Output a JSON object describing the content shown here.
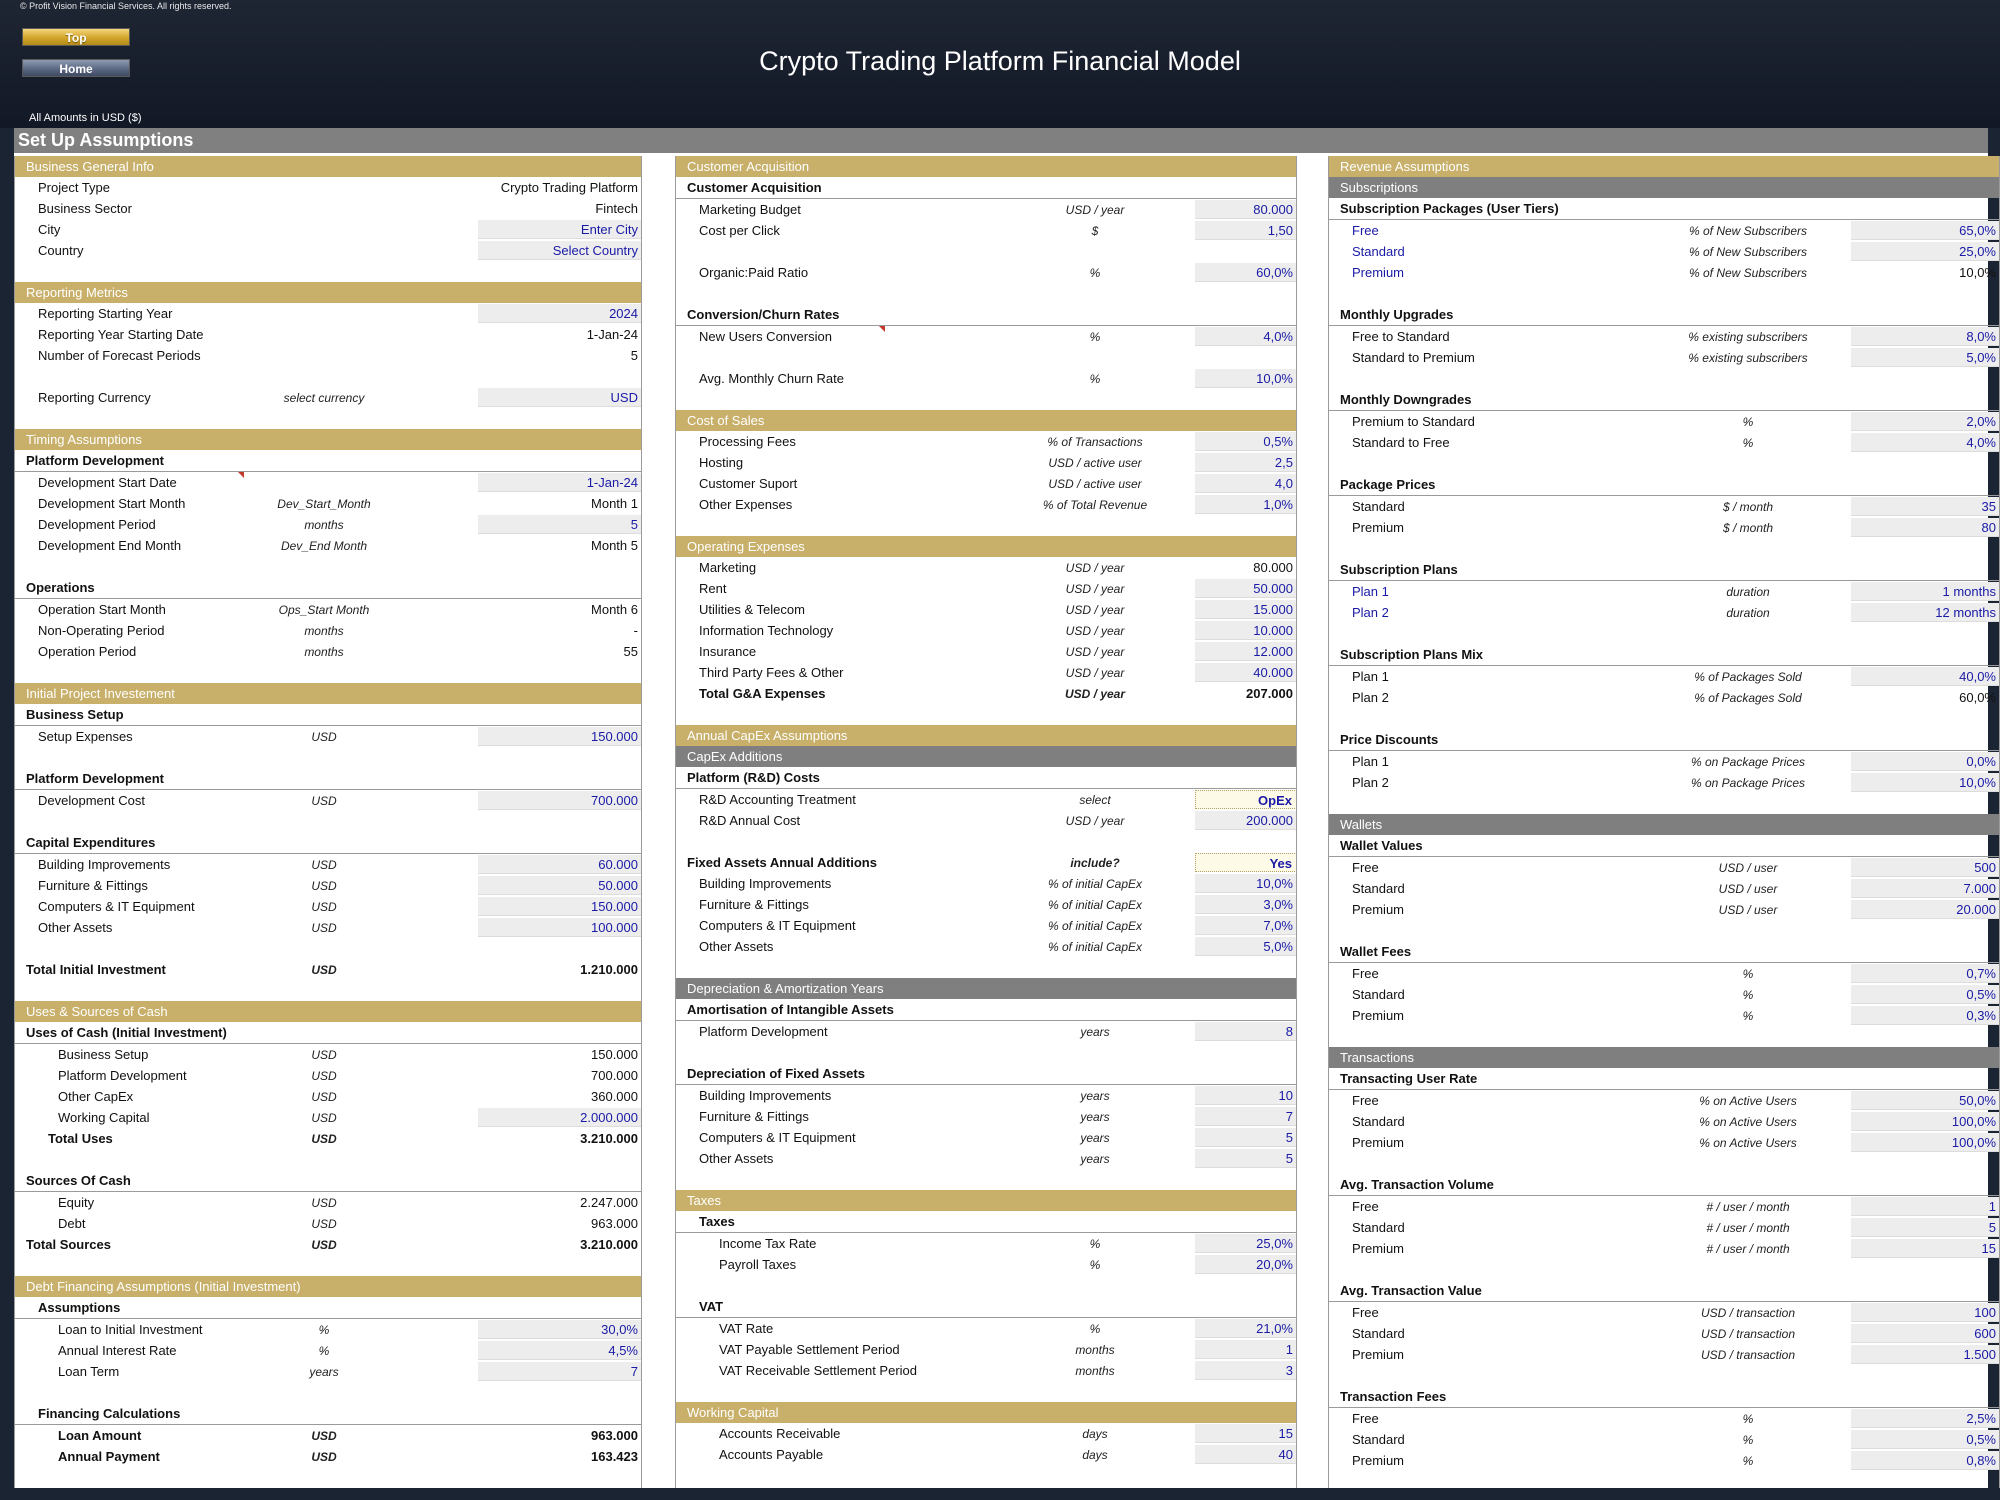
{
  "header": {
    "copyright": "© Profit Vision Financial Services. All rights reserved.",
    "top_button": "Top",
    "home_button": "Home",
    "title": "Crypto Trading Platform Financial Model",
    "amounts_note": "All Amounts in  USD ($)"
  },
  "sheet_title": "Set Up Assumptions",
  "col1": {
    "business_info": {
      "title": "Business General Info",
      "rows": [
        {
          "label": "Project Type",
          "value": "Crypto Trading Platform"
        },
        {
          "label": "Business Sector",
          "value": "Fintech"
        },
        {
          "label": "City",
          "value": "Enter City"
        },
        {
          "label": "Country",
          "value": "Select Country"
        }
      ]
    },
    "reporting": {
      "title": "Reporting Metrics",
      "rows": [
        {
          "label": "Reporting Starting Year",
          "value": "2024"
        },
        {
          "label": "Reporting Year Starting Date",
          "value": "1-Jan-24"
        },
        {
          "label": "Number of Forecast Periods",
          "value": "5"
        },
        {
          "label": "Reporting Currency",
          "unit": "select currency",
          "value": "USD"
        }
      ]
    },
    "timing": {
      "title": "Timing Assumptions",
      "platform_dev": "Platform Development",
      "dev_rows": [
        {
          "label": "Development Start Date",
          "unit": "",
          "value": "1-Jan-24"
        },
        {
          "label": "Development Start Month",
          "unit": "Dev_Start_Month",
          "value": "Month 1"
        },
        {
          "label": "Development Period",
          "unit": "months",
          "value": "5"
        },
        {
          "label": "Development End Month",
          "unit": "Dev_End Month",
          "value": "Month 5"
        }
      ],
      "operations": "Operations",
      "ops_rows": [
        {
          "label": "Operation Start Month",
          "unit": "Ops_Start Month",
          "value": "Month 6"
        },
        {
          "label": "Non-Operating Period",
          "unit": "months",
          "value": "-"
        },
        {
          "label": "Operation Period",
          "unit": "months",
          "value": "55"
        }
      ]
    },
    "initial_investment": {
      "title": "Initial Project Investement",
      "business_setup": "Business Setup",
      "setup_rows": [
        {
          "label": "Setup Expenses",
          "unit": "USD",
          "value": "150.000"
        }
      ],
      "platform_dev": "Platform Development",
      "dev_rows": [
        {
          "label": "Development Cost",
          "unit": "USD",
          "value": "700.000"
        }
      ],
      "capex": "Capital Expenditures",
      "capex_rows": [
        {
          "label": "Building Improvements",
          "unit": "USD",
          "value": "60.000"
        },
        {
          "label": "Furniture & Fittings",
          "unit": "USD",
          "value": "50.000"
        },
        {
          "label": "Computers & IT Equipment",
          "unit": "USD",
          "value": "150.000"
        },
        {
          "label": "Other Assets",
          "unit": "USD",
          "value": "100.000"
        }
      ],
      "total": {
        "label": "Total Initial Investment",
        "unit": "USD",
        "value": "1.210.000"
      }
    },
    "uses_sources": {
      "title": "Uses & Sources of Cash",
      "uses": "Uses of Cash (Initial Investment)",
      "uses_rows": [
        {
          "label": "Business Setup",
          "unit": "USD",
          "value": "150.000"
        },
        {
          "label": "Platform Development",
          "unit": "USD",
          "value": "700.000"
        },
        {
          "label": "Other CapEx",
          "unit": "USD",
          "value": "360.000"
        },
        {
          "label": "Working Capital",
          "unit": "USD",
          "value": "2.000.000"
        }
      ],
      "total_uses": {
        "label": "Total Uses",
        "unit": "USD",
        "value": "3.210.000"
      },
      "sources": "Sources Of Cash",
      "sources_rows": [
        {
          "label": "Equity",
          "unit": "USD",
          "value": "2.247.000"
        },
        {
          "label": "Debt",
          "unit": "USD",
          "value": "963.000"
        }
      ],
      "total_sources": {
        "label": "Total Sources",
        "unit": "USD",
        "value": "3.210.000"
      }
    },
    "debt": {
      "title": "Debt Financing Assumptions (Initial Investment)",
      "assumptions": "Assumptions",
      "rows": [
        {
          "label": "Loan to Initial Investment",
          "unit": "%",
          "value": "30,0%"
        },
        {
          "label": "Annual Interest Rate",
          "unit": "%",
          "value": "4,5%"
        },
        {
          "label": "Loan Term",
          "unit": "years",
          "value": "7"
        }
      ],
      "calcs": "Financing Calculations",
      "calc_rows": [
        {
          "label": "Loan Amount",
          "unit": "USD",
          "value": "963.000"
        },
        {
          "label": "Annual Payment",
          "unit": "USD",
          "value": "163.423"
        }
      ]
    }
  },
  "col2": {
    "acquisition": {
      "title": "Customer Acquisition",
      "sub": "Customer Acquisition",
      "rows": [
        {
          "label": "Marketing Budget",
          "unit": "USD / year",
          "value": "80.000"
        },
        {
          "label": "Cost per Click",
          "unit": "$",
          "value": "1,50"
        },
        {
          "label": "Organic:Paid Ratio",
          "unit": "%",
          "value": "60,0%"
        }
      ],
      "conv": "Conversion/Churn Rates",
      "conv_rows": [
        {
          "label": "New Users Conversion",
          "unit": "%",
          "value": "4,0%"
        },
        {
          "label": "Avg. Monthly Churn Rate",
          "unit": "%",
          "value": "10,0%"
        }
      ]
    },
    "cost_of_sales": {
      "title": "Cost of Sales",
      "rows": [
        {
          "label": "Processing Fees",
          "unit": "% of Transactions",
          "value": "0,5%"
        },
        {
          "label": "Hosting",
          "unit": "USD / active user",
          "value": "2,5"
        },
        {
          "label": "Customer Suport",
          "unit": "USD / active user",
          "value": "4,0"
        },
        {
          "label": "Other Expenses",
          "unit": "% of Total Revenue",
          "value": "1,0%"
        }
      ]
    },
    "opex": {
      "title": "Operating Expenses",
      "rows": [
        {
          "label": "Marketing",
          "unit": "USD / year",
          "value": "80.000"
        },
        {
          "label": "Rent",
          "unit": "USD / year",
          "value": "50.000"
        },
        {
          "label": "Utilities & Telecom",
          "unit": "USD / year",
          "value": "15.000"
        },
        {
          "label": "Information Technology",
          "unit": "USD / year",
          "value": "10.000"
        },
        {
          "label": "Insurance",
          "unit": "USD / year",
          "value": "12.000"
        },
        {
          "label": "Third Party Fees & Other",
          "unit": "USD / year",
          "value": "40.000"
        }
      ],
      "total": {
        "label": "Total G&A Expenses",
        "unit": "USD / year",
        "value": "207.000"
      }
    },
    "capex": {
      "title": "Annual CapEx Assumptions",
      "additions": "CapEx Additions",
      "rnd": "Platform (R&D) Costs",
      "rnd_rows": [
        {
          "label": "R&D Accounting Treatment",
          "unit": "select",
          "value": "OpEx"
        },
        {
          "label": "R&D Annual Cost",
          "unit": "USD / year",
          "value": "200.000"
        }
      ],
      "fixed": {
        "label": "Fixed Assets Annual Additions",
        "unit": "include?",
        "value": "Yes"
      },
      "fixed_rows": [
        {
          "label": "Building Improvements",
          "unit": "% of initial CapEx",
          "value": "10,0%"
        },
        {
          "label": "Furniture & Fittings",
          "unit": "% of initial CapEx",
          "value": "3,0%"
        },
        {
          "label": "Computers & IT Equipment",
          "unit": "% of initial CapEx",
          "value": "7,0%"
        },
        {
          "label": "Other Assets",
          "unit": "% of initial CapEx",
          "value": "5,0%"
        }
      ]
    },
    "depreciation": {
      "title": "Depreciation & Amortization Years",
      "amort": "Amortisation of Intangible Assets",
      "amort_rows": [
        {
          "label": "Platform Development",
          "unit": "years",
          "value": "8"
        }
      ],
      "dep": "Depreciation of Fixed Assets",
      "dep_rows": [
        {
          "label": "Building Improvements",
          "unit": "years",
          "value": "10"
        },
        {
          "label": "Furniture & Fittings",
          "unit": "years",
          "value": "7"
        },
        {
          "label": "Computers & IT Equipment",
          "unit": "years",
          "value": "5"
        },
        {
          "label": "Other Assets",
          "unit": "years",
          "value": "5"
        }
      ]
    },
    "taxes": {
      "title": "Taxes",
      "sub": "Taxes",
      "rows": [
        {
          "label": "Income Tax Rate",
          "unit": "%",
          "value": "25,0%"
        },
        {
          "label": "Payroll Taxes",
          "unit": "%",
          "value": "20,0%"
        }
      ],
      "vat": "VAT",
      "vat_rows": [
        {
          "label": "VAT Rate",
          "unit": "%",
          "value": "21,0%"
        },
        {
          "label": "VAT Payable Settlement Period",
          "unit": "months",
          "value": "1"
        },
        {
          "label": "VAT Receivable Settlement Period",
          "unit": "months",
          "value": "3"
        }
      ]
    },
    "working_capital": {
      "title": "Working Capital",
      "rows": [
        {
          "label": "Accounts Receivable",
          "unit": "days",
          "value": "15"
        },
        {
          "label": "Accounts Payable",
          "unit": "days",
          "value": "40"
        }
      ]
    }
  },
  "col3": {
    "revenue": {
      "title": "Revenue Assumptions",
      "subscriptions": "Subscriptions",
      "packages": "Subscription Packages (User Tiers)",
      "package_rows": [
        {
          "label": "Free",
          "unit": "% of New Subscribers",
          "value": "65,0%"
        },
        {
          "label": "Standard",
          "unit": "% of New Subscribers",
          "value": "25,0%"
        },
        {
          "label": "Premium",
          "unit": "% of New Subscribers",
          "value": "10,0%"
        }
      ],
      "upgrades": "Monthly Upgrades",
      "upgrade_rows": [
        {
          "label": "Free to Standard",
          "unit": "% existing subscribers",
          "value": "8,0%"
        },
        {
          "label": "Standard to Premium",
          "unit": "% existing subscribers",
          "value": "5,0%"
        }
      ],
      "downgrades": "Monthly Downgrades",
      "downgrade_rows": [
        {
          "label": "Premium to Standard",
          "unit": "%",
          "value": "2,0%"
        },
        {
          "label": "Standard to Free",
          "unit": "%",
          "value": "4,0%"
        }
      ],
      "prices": "Package Prices",
      "price_rows": [
        {
          "label": "Standard",
          "unit": "$ / month",
          "value": "35"
        },
        {
          "label": "Premium",
          "unit": "$ / month",
          "value": "80"
        }
      ],
      "plans": "Subscription Plans",
      "plan_rows": [
        {
          "label": "Plan 1",
          "unit": "duration",
          "value": "1 months"
        },
        {
          "label": "Plan 2",
          "unit": "duration",
          "value": "12 months"
        }
      ],
      "mix": "Subscription Plans Mix",
      "mix_rows": [
        {
          "label": "Plan 1",
          "unit": "% of Packages Sold",
          "value": "40,0%"
        },
        {
          "label": "Plan 2",
          "unit": "% of Packages Sold",
          "value": "60,0%"
        }
      ],
      "discounts": "Price Discounts",
      "discount_rows": [
        {
          "label": "Plan 1",
          "unit": "% on Package Prices",
          "value": "0,0%"
        },
        {
          "label": "Plan 2",
          "unit": "% on Package Prices",
          "value": "10,0%"
        }
      ]
    },
    "wallets": {
      "title": "Wallets",
      "values": "Wallet Values",
      "value_rows": [
        {
          "label": "Free",
          "unit": "USD / user",
          "value": "500"
        },
        {
          "label": "Standard",
          "unit": "USD / user",
          "value": "7.000"
        },
        {
          "label": "Premium",
          "unit": "USD / user",
          "value": "20.000"
        }
      ],
      "fees": "Wallet Fees",
      "fee_rows": [
        {
          "label": "Free",
          "unit": "%",
          "value": "0,7%"
        },
        {
          "label": "Standard",
          "unit": "%",
          "value": "0,5%"
        },
        {
          "label": "Premium",
          "unit": "%",
          "value": "0,3%"
        }
      ]
    },
    "transactions": {
      "title": "Transactions",
      "rate": "Transacting User Rate",
      "rate_rows": [
        {
          "label": "Free",
          "unit": "% on Active Users",
          "value": "50,0%"
        },
        {
          "label": "Standard",
          "unit": "% on Active Users",
          "value": "100,0%"
        },
        {
          "label": "Premium",
          "unit": "% on Active Users",
          "value": "100,0%"
        }
      ],
      "volume": "Avg. Transaction Volume",
      "volume_rows": [
        {
          "label": "Free",
          "unit": "# / user / month",
          "value": "1"
        },
        {
          "label": "Standard",
          "unit": "# / user / month",
          "value": "5"
        },
        {
          "label": "Premium",
          "unit": "# / user / month",
          "value": "15"
        }
      ],
      "tvalue": "Avg. Transaction Value",
      "tvalue_rows": [
        {
          "label": "Free",
          "unit": "USD / transaction",
          "value": "100"
        },
        {
          "label": "Standard",
          "unit": "USD / transaction",
          "value": "600"
        },
        {
          "label": "Premium",
          "unit": "USD / transaction",
          "value": "1.500"
        }
      ],
      "tfees": "Transaction Fees",
      "tfee_rows": [
        {
          "label": "Free",
          "unit": "%",
          "value": "2,5%"
        },
        {
          "label": "Standard",
          "unit": "%",
          "value": "0,5%"
        },
        {
          "label": "Premium",
          "unit": "%",
          "value": "0,8%"
        }
      ]
    }
  }
}
